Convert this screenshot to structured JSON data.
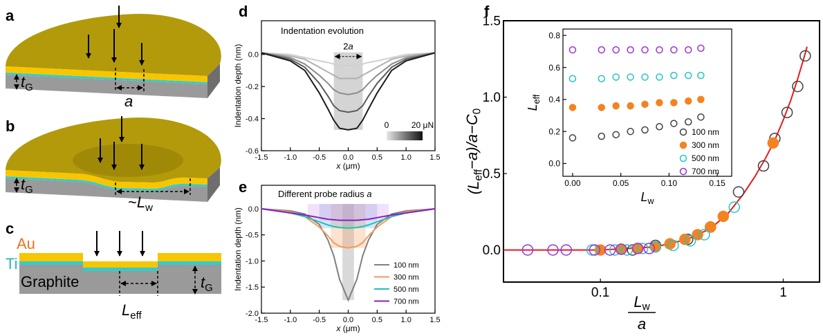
{
  "panel_labels": [
    "a",
    "b",
    "c",
    "d",
    "e",
    "f"
  ],
  "schematic_a": {
    "thickness": [
      "t",
      "G"
    ],
    "radius": [
      "a"
    ]
  },
  "schematic_b": {
    "thickness": [
      "t",
      "G"
    ],
    "width": [
      "~",
      "L",
      "w"
    ]
  },
  "schematic_c": {
    "layers": [
      "Au",
      "Ti",
      "Graphite"
    ],
    "thickness": [
      "t",
      "G"
    ],
    "width": [
      "L",
      "eff"
    ]
  },
  "chart_data": [
    {
      "type": "line",
      "title": "Indentation evolution",
      "x_label": [
        "x",
        " (μm)"
      ],
      "y_label": "Indentation depth (nm)",
      "x": [
        -1.5,
        -1.0,
        -0.75,
        -0.5,
        -0.35,
        -0.25,
        -0.15,
        0,
        0.15,
        0.25,
        0.35,
        0.5,
        0.75,
        1.0,
        1.5
      ],
      "series": [
        {
          "color": "#d0d0d0",
          "values": [
            0.01,
            0.0,
            -0.02,
            -0.04,
            -0.05,
            -0.06,
            -0.07,
            -0.07,
            -0.07,
            -0.06,
            -0.05,
            -0.04,
            -0.02,
            0.0,
            0.01
          ]
        },
        {
          "color": "#b0b0b0",
          "values": [
            0.01,
            -0.01,
            -0.03,
            -0.08,
            -0.11,
            -0.13,
            -0.15,
            -0.15,
            -0.15,
            -0.13,
            -0.11,
            -0.08,
            -0.03,
            -0.01,
            0.01
          ]
        },
        {
          "color": "#8c8c8c",
          "values": [
            0.01,
            -0.02,
            -0.06,
            -0.13,
            -0.18,
            -0.22,
            -0.24,
            -0.25,
            -0.24,
            -0.22,
            -0.18,
            -0.13,
            -0.06,
            -0.02,
            0.01
          ]
        },
        {
          "color": "#5a5a5a",
          "values": [
            0.01,
            -0.03,
            -0.08,
            -0.18,
            -0.26,
            -0.32,
            -0.35,
            -0.36,
            -0.35,
            -0.32,
            -0.26,
            -0.18,
            -0.08,
            -0.03,
            0.01
          ]
        },
        {
          "color": "#1a1a1a",
          "values": [
            0.01,
            -0.04,
            -0.1,
            -0.24,
            -0.34,
            -0.41,
            -0.46,
            -0.47,
            -0.46,
            -0.41,
            -0.34,
            -0.24,
            -0.1,
            -0.04,
            0.01
          ]
        }
      ],
      "xlim": [
        -1.5,
        1.5
      ],
      "ylim": [
        -0.6,
        0.21
      ],
      "xticks": [
        -1.5,
        {
          "value": -1,
          "label": "-1.0"
        },
        -0.5,
        {
          "value": 0,
          "label": "0.0"
        },
        0.5,
        {
          "value": 1,
          "label": "1.0"
        },
        1.5
      ],
      "yticks": [
        {
          "value": 0,
          "label": "0.0"
        },
        -0.2,
        -0.4,
        -0.6
      ],
      "band": [
        -0.25,
        0.25
      ],
      "band_label": [
        "2",
        "a"
      ],
      "colorbar": {
        "colors": [
          "#e8e8e8",
          "#111111"
        ],
        "lim": [
          0,
          20
        ],
        "ticks": [
          0,
          {
            "value": 20,
            "label": "20 μN"
          }
        ]
      }
    },
    {
      "type": "line",
      "title": [
        "Different probe radius ",
        "a"
      ],
      "x_label": [
        "x",
        " (μm)"
      ],
      "y_label": "Indentation depth (nm)",
      "x": [
        -1.5,
        -1.0,
        -0.75,
        -0.5,
        -0.35,
        -0.25,
        -0.15,
        0,
        0.15,
        0.25,
        0.35,
        0.5,
        0.75,
        1.0,
        1.5
      ],
      "series": [
        {
          "name": "100 nm",
          "color": "#7f7f7f",
          "band": [
            -0.1,
            0.1
          ],
          "band_color": "#808080",
          "values": [
            0.0,
            -0.04,
            -0.1,
            -0.3,
            -0.6,
            -0.9,
            -1.35,
            -1.75,
            -1.35,
            -0.9,
            -0.6,
            -0.3,
            -0.1,
            -0.04,
            0.0
          ]
        },
        {
          "name": "300 nm",
          "color": "#f29a5a",
          "band": [
            -0.3,
            0.3
          ],
          "band_color": "#f5a060",
          "values": [
            0.0,
            -0.06,
            -0.15,
            -0.35,
            -0.52,
            -0.65,
            -0.72,
            -0.75,
            -0.72,
            -0.65,
            -0.52,
            -0.35,
            -0.15,
            -0.06,
            0.0
          ]
        },
        {
          "name": "500 nm",
          "color": "#20c0b8",
          "band": [
            -0.5,
            0.5
          ],
          "band_color": "#6fa8dc",
          "values": [
            0.0,
            -0.08,
            -0.15,
            -0.25,
            -0.31,
            -0.34,
            -0.36,
            -0.37,
            -0.36,
            -0.34,
            -0.31,
            -0.25,
            -0.15,
            -0.08,
            0.0
          ]
        },
        {
          "name": "700 nm",
          "color": "#8a1fc0",
          "band": [
            -0.7,
            0.7
          ],
          "band_color": "#d59cf0",
          "values": [
            0.0,
            -0.08,
            -0.12,
            -0.17,
            -0.2,
            -0.21,
            -0.22,
            -0.22,
            -0.22,
            -0.21,
            -0.2,
            -0.17,
            -0.12,
            -0.08,
            0.0
          ]
        }
      ],
      "xlim": [
        -1.5,
        1.5
      ],
      "ylim": [
        -2.0,
        0.45
      ],
      "xticks": [
        -1.5,
        {
          "value": -1,
          "label": "-1.0"
        },
        -0.5,
        {
          "value": 0,
          "label": "0.0"
        },
        0.5,
        {
          "value": 1,
          "label": "1.0"
        },
        1.5
      ],
      "yticks": [
        {
          "value": 0,
          "label": "0.0"
        },
        -0.5,
        {
          "value": -1,
          "label": "-1.0"
        },
        -1.5,
        {
          "value": -2,
          "label": "-2.0"
        }
      ],
      "legend": "lower right"
    },
    {
      "type": "scatter",
      "log_x": true,
      "y_label": [
        "(L",
        "eff",
        "−a)/a−C",
        "0"
      ],
      "x_label": {
        "numerator": [
          "L",
          "w"
        ],
        "denominator": [
          "a"
        ]
      },
      "xlim": [
        0.0295,
        1.58
      ],
      "ylim": [
        -0.21,
        1.5
      ],
      "xticks": [
        0.1,
        1
      ],
      "yticks": [
        {
          "value": 0,
          "label": "0.0"
        },
        0.5,
        {
          "value": 1,
          "label": "1.0"
        },
        1.5
      ],
      "series": [
        {
          "name": "100 nm",
          "color": "#404040",
          "filled": false,
          "x": [
            0.15,
            0.2,
            0.3,
            0.4,
            0.57,
            0.78,
            0.9,
            1.05,
            1.2,
            1.32
          ],
          "values": [
            0.0,
            0.03,
            0.07,
            0.15,
            0.38,
            0.55,
            0.73,
            0.9,
            1.07,
            1.27
          ]
        },
        {
          "name": "300 nm",
          "color": "#f58220",
          "filled": true,
          "x": [
            0.1,
            0.13,
            0.16,
            0.2,
            0.24,
            0.29,
            0.34,
            0.4,
            0.47,
            0.88
          ],
          "values": [
            0.0,
            0.005,
            0.01,
            0.02,
            0.04,
            0.07,
            0.1,
            0.15,
            0.22,
            0.7
          ]
        },
        {
          "name": "500 nm",
          "color": "#22c5c5",
          "filled": false,
          "x": [
            0.09,
            0.12,
            0.14,
            0.17,
            0.2,
            0.25,
            0.31,
            0.37,
            0.54
          ],
          "values": [
            0.0,
            0.0,
            0.0,
            0.01,
            0.02,
            0.03,
            0.06,
            0.1,
            0.28
          ]
        },
        {
          "name": "700 nm",
          "color": "#9b30d9",
          "filled": false,
          "x": [
            0.04,
            0.055,
            0.065,
            0.093,
            0.113,
            0.13,
            0.16,
            0.185
          ],
          "values": [
            0.0,
            0.0,
            0.0,
            0.0,
            0.0,
            0.005,
            0.01,
            0.01
          ]
        }
      ],
      "fit": {
        "color": "#e8191c",
        "x": [
          0.0295,
          0.1,
          0.2,
          0.3,
          0.4,
          0.5,
          0.6,
          0.7,
          0.8,
          0.9,
          1.0,
          1.1,
          1.2,
          1.3,
          1.35
        ],
        "values": [
          0.0,
          0.0,
          0.02,
          0.07,
          0.14,
          0.24,
          0.36,
          0.48,
          0.6,
          0.72,
          0.85,
          0.98,
          1.12,
          1.26,
          1.33
        ]
      }
    },
    {
      "type": "scatter",
      "x_label": [
        "L",
        "w"
      ],
      "y_label": [
        "L",
        "eff"
      ],
      "x": [
        0,
        0.03,
        0.045,
        0.06,
        0.075,
        0.09,
        0.105,
        0.12,
        0.133
      ],
      "xlim": [
        -0.01,
        0.165
      ],
      "ylim": [
        -0.08,
        0.84
      ],
      "xticks": [
        {
          "value": 0,
          "label": "0.00"
        },
        0.05,
        {
          "value": 0.1,
          "label": "0.10"
        },
        0.15
      ],
      "yticks": [
        {
          "value": 0,
          "label": "0.0"
        },
        0.2,
        0.4,
        0.6,
        0.8
      ],
      "series": [
        {
          "name": "100 nm",
          "color": "#404040",
          "filled": false,
          "values": [
            0.16,
            0.17,
            0.18,
            0.2,
            0.21,
            0.23,
            0.25,
            0.26,
            0.29
          ]
        },
        {
          "name": "300 nm",
          "color": "#f58220",
          "filled": true,
          "values": [
            0.35,
            0.35,
            0.36,
            0.36,
            0.37,
            0.38,
            0.38,
            0.39,
            0.4
          ]
        },
        {
          "name": "500 nm",
          "color": "#22c5c5",
          "filled": false,
          "values": [
            0.53,
            0.53,
            0.54,
            0.54,
            0.54,
            0.54,
            0.55,
            0.55,
            0.55
          ]
        },
        {
          "name": "700 nm",
          "color": "#9b30d9",
          "filled": false,
          "values": [
            0.71,
            0.71,
            0.71,
            0.71,
            0.71,
            0.71,
            0.71,
            0.71,
            0.72
          ]
        }
      ],
      "legend": "lower right"
    }
  ]
}
